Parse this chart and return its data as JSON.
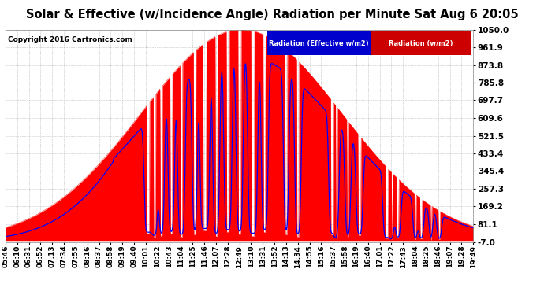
{
  "title": "Solar & Effective (w/Incidence Angle) Radiation per Minute Sat Aug 6 20:05",
  "copyright": "Copyright 2016 Cartronics.com",
  "legend_blue": "Radiation (Effective w/m2)",
  "legend_red": "Radiation (w/m2)",
  "y_ticks": [
    -7.0,
    81.1,
    169.2,
    257.3,
    345.4,
    433.4,
    521.5,
    609.6,
    697.7,
    785.8,
    873.8,
    961.9,
    1050.0
  ],
  "ymin": -7.0,
  "ymax": 1050.0,
  "background_color": "#ffffff",
  "grid_color": "#999999",
  "fill_color": "#ff0000",
  "line_color_blue": "#0000ff",
  "line_color_red": "#ff0000",
  "x_labels": [
    "05:46",
    "06:10",
    "06:31",
    "06:52",
    "07:13",
    "07:34",
    "07:55",
    "08:16",
    "08:37",
    "08:58",
    "09:19",
    "09:40",
    "10:01",
    "10:22",
    "10:43",
    "11:04",
    "11:25",
    "11:46",
    "12:07",
    "12:28",
    "12:49",
    "13:10",
    "13:31",
    "13:52",
    "14:13",
    "14:34",
    "14:55",
    "15:16",
    "15:37",
    "15:58",
    "16:19",
    "16:40",
    "17:01",
    "17:22",
    "17:43",
    "18:04",
    "18:25",
    "18:46",
    "19:07",
    "19:28",
    "19:49"
  ],
  "legend_blue_color": "#0000cc",
  "legend_red_color": "#cc0000"
}
